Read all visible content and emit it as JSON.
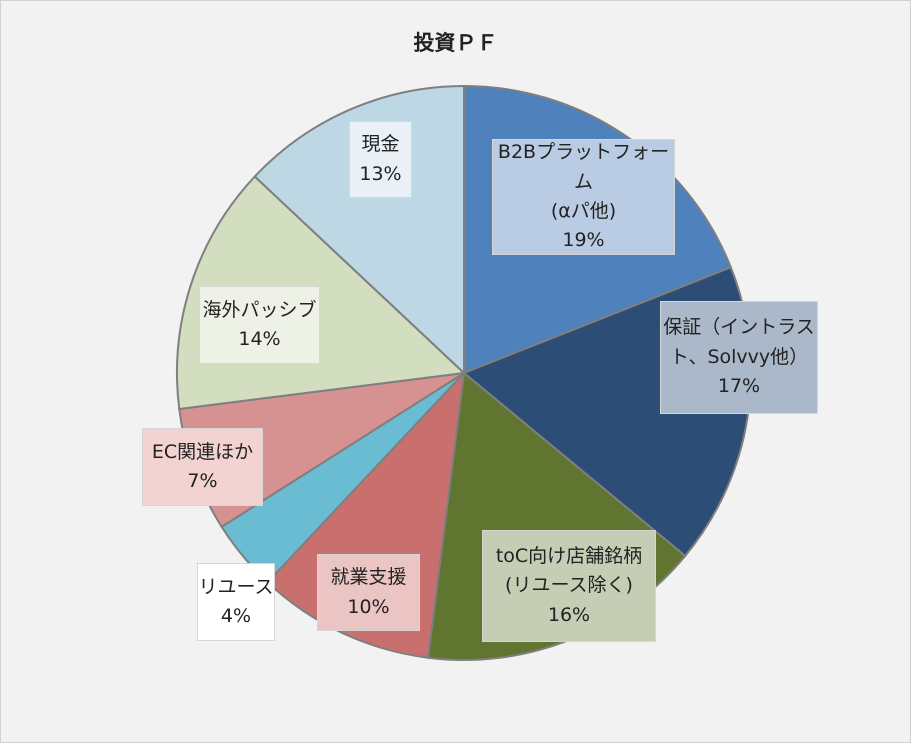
{
  "chart_data": {
    "type": "pie",
    "title": "投資ＰＦ",
    "start_angle_deg": 0,
    "direction": "clockwise",
    "legend": "none",
    "slices": [
      {
        "label_lines": [
          "B2Bプラットフォーム",
          "(αパ他)"
        ],
        "value": 19,
        "value_label": "19%",
        "color": "#4f81bd",
        "label_bg": "#b9cce4"
      },
      {
        "label_lines": [
          "保証（イントラス",
          "ト、Solvvy他）"
        ],
        "value": 17,
        "value_label": "17%",
        "color": "#2c4d75",
        "label_bg": "#abb8c9"
      },
      {
        "label_lines": [
          "toC向け店舗銘柄",
          "(リユース除く)"
        ],
        "value": 16,
        "value_label": "16%",
        "color": "#5f7530",
        "label_bg": "#c6cdb5"
      },
      {
        "label_lines": [
          "就業支援"
        ],
        "value": 10,
        "value_label": "10%",
        "color": "#c9706e",
        "label_bg": "#eac5c4"
      },
      {
        "label_lines": [
          "リユース"
        ],
        "value": 4,
        "value_label": "4%",
        "color": "#6abcd2",
        "label_bg": "#ffffff"
      },
      {
        "label_lines": [
          "EC関連ほか"
        ],
        "value": 7,
        "value_label": "7%",
        "color": "#d59290",
        "label_bg": "#f2d3d2"
      },
      {
        "label_lines": [
          "海外パッシブ"
        ],
        "value": 14,
        "value_label": "14%",
        "color": "#d3ddbf",
        "label_bg": "#eef2e6"
      },
      {
        "label_lines": [
          "現金"
        ],
        "value": 13,
        "value_label": "13%",
        "color": "#bdd7e4",
        "label_bg": "#e9f1f6"
      }
    ]
  }
}
